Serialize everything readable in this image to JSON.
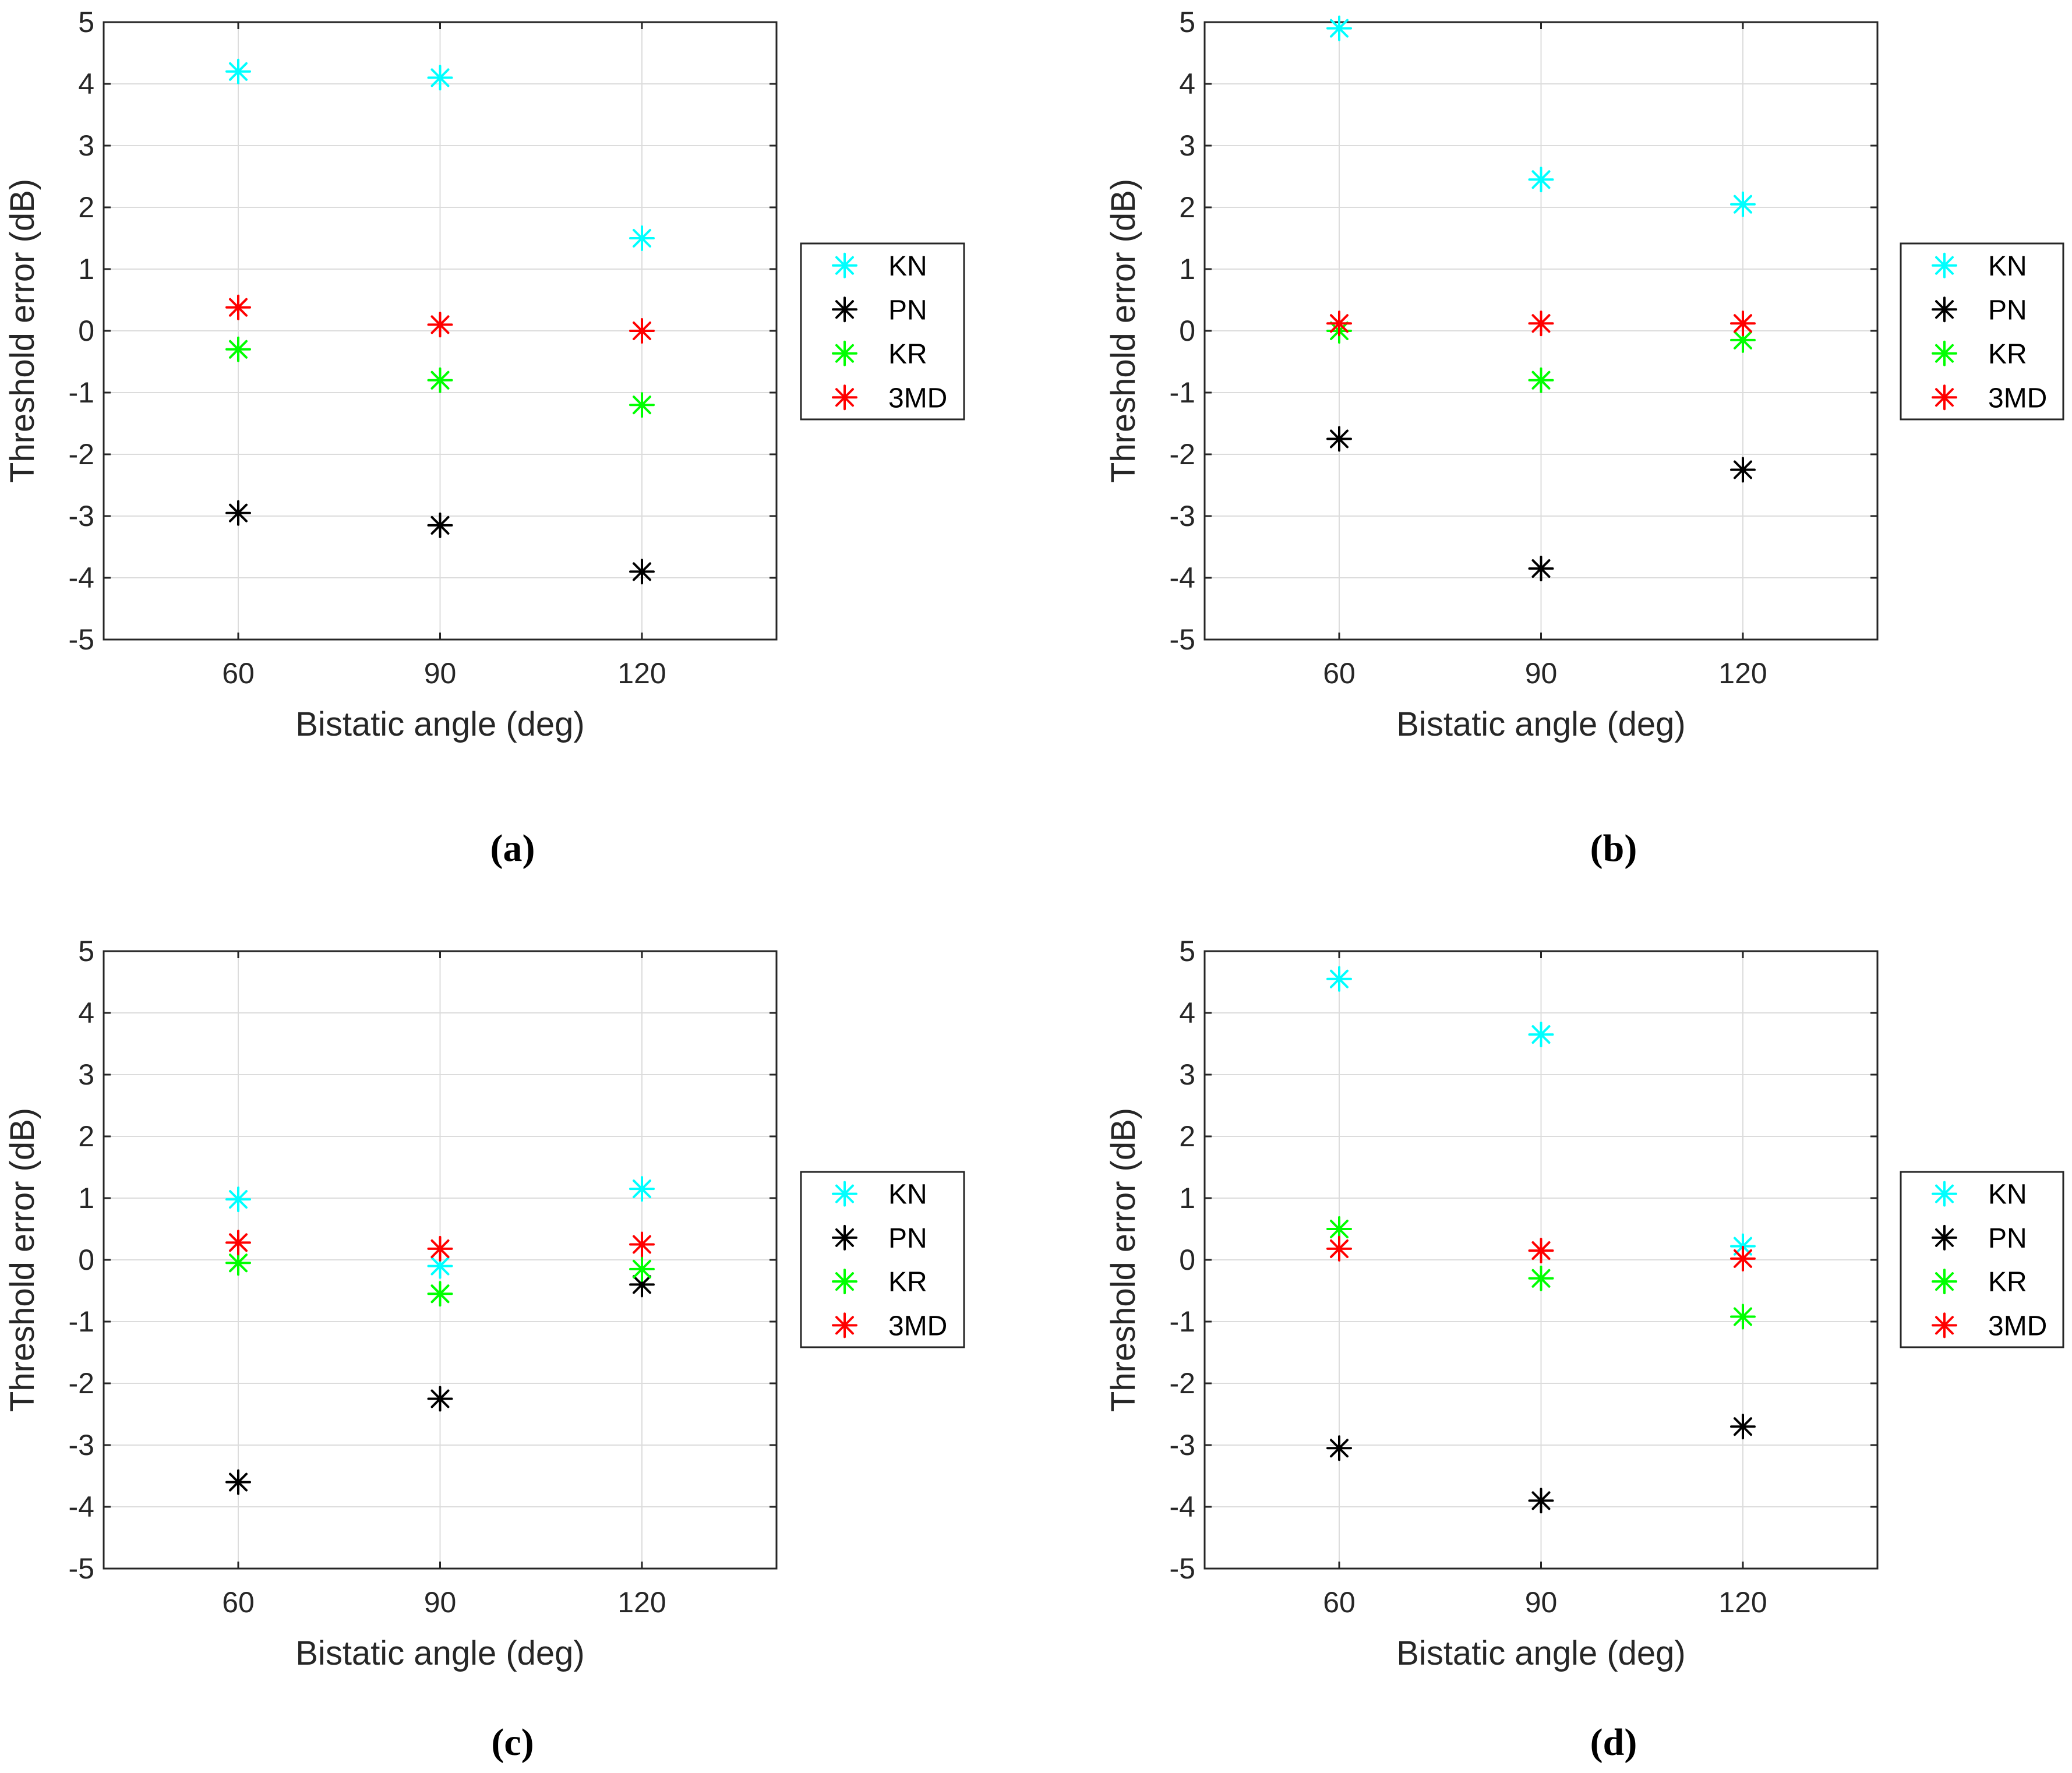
{
  "chart_data": [
    {
      "type": "scatter",
      "panel_label": "(a)",
      "xlabel": "Bistatic angle (deg)",
      "ylabel": "Threshold error (dB)",
      "x": [
        60,
        90,
        120
      ],
      "xlim": [
        40,
        140
      ],
      "ylim": [
        -5,
        5
      ],
      "xticks": [
        "60",
        "90",
        "120"
      ],
      "yticks": [
        "5",
        "4",
        "3",
        "2",
        "1",
        "0",
        "-1",
        "-2",
        "-3",
        "-4",
        "-5"
      ],
      "grid": true,
      "legend": "outside-right",
      "marker": "asterisk",
      "series": [
        {
          "name": "KN",
          "color": "#00FFFF",
          "values": [
            4.2,
            4.1,
            1.5
          ]
        },
        {
          "name": "PN",
          "color": "#000000",
          "values": [
            -2.95,
            -3.15,
            -3.9
          ]
        },
        {
          "name": "KR",
          "color": "#00FF00",
          "values": [
            -0.3,
            -0.8,
            -1.2
          ]
        },
        {
          "name": "3MD",
          "color": "#FF0000",
          "values": [
            0.38,
            0.1,
            0.0
          ]
        }
      ]
    },
    {
      "type": "scatter",
      "panel_label": "(b)",
      "xlabel": "Bistatic angle (deg)",
      "ylabel": "Threshold error (dB)",
      "x": [
        60,
        90,
        120
      ],
      "xlim": [
        40,
        140
      ],
      "ylim": [
        -5,
        5
      ],
      "xticks": [
        "60",
        "90",
        "120"
      ],
      "yticks": [
        "5",
        "4",
        "3",
        "2",
        "1",
        "0",
        "-1",
        "-2",
        "-3",
        "-4",
        "-5"
      ],
      "grid": true,
      "legend": "outside-right",
      "marker": "asterisk",
      "series": [
        {
          "name": "KN",
          "color": "#00FFFF",
          "values": [
            4.9,
            2.45,
            2.05
          ]
        },
        {
          "name": "PN",
          "color": "#000000",
          "values": [
            -1.75,
            -3.85,
            -2.25
          ]
        },
        {
          "name": "KR",
          "color": "#00FF00",
          "values": [
            0.0,
            -0.8,
            -0.15
          ]
        },
        {
          "name": "3MD",
          "color": "#FF0000",
          "values": [
            0.12,
            0.12,
            0.12
          ]
        }
      ]
    },
    {
      "type": "scatter",
      "panel_label": "(c)",
      "xlabel": "Bistatic angle (deg)",
      "ylabel": "Threshold error (dB)",
      "x": [
        60,
        90,
        120
      ],
      "xlim": [
        40,
        140
      ],
      "ylim": [
        -5,
        5
      ],
      "xticks": [
        "60",
        "90",
        "120"
      ],
      "yticks": [
        "5",
        "4",
        "3",
        "2",
        "1",
        "0",
        "-1",
        "-2",
        "-3",
        "-4",
        "-5"
      ],
      "grid": true,
      "legend": "outside-right",
      "marker": "asterisk",
      "series": [
        {
          "name": "KN",
          "color": "#00FFFF",
          "values": [
            0.98,
            -0.1,
            1.15
          ]
        },
        {
          "name": "PN",
          "color": "#000000",
          "values": [
            -3.6,
            -2.25,
            -0.4
          ]
        },
        {
          "name": "KR",
          "color": "#00FF00",
          "values": [
            -0.05,
            -0.55,
            -0.15
          ]
        },
        {
          "name": "3MD",
          "color": "#FF0000",
          "values": [
            0.28,
            0.18,
            0.25
          ]
        }
      ]
    },
    {
      "type": "scatter",
      "panel_label": "(d)",
      "xlabel": "Bistatic angle (deg)",
      "ylabel": "Threshold error (dB)",
      "x": [
        60,
        90,
        120
      ],
      "xlim": [
        40,
        140
      ],
      "ylim": [
        -5,
        5
      ],
      "xticks": [
        "60",
        "90",
        "120"
      ],
      "yticks": [
        "5",
        "4",
        "3",
        "2",
        "1",
        "0",
        "-1",
        "-2",
        "-3",
        "-4",
        "-5"
      ],
      "grid": true,
      "legend": "outside-right",
      "marker": "asterisk",
      "series": [
        {
          "name": "KN",
          "color": "#00FFFF",
          "values": [
            4.55,
            3.65,
            0.22
          ]
        },
        {
          "name": "PN",
          "color": "#000000",
          "values": [
            -3.05,
            -3.9,
            -2.7
          ]
        },
        {
          "name": "KR",
          "color": "#00FF00",
          "values": [
            0.5,
            -0.3,
            -0.92
          ]
        },
        {
          "name": "3MD",
          "color": "#FF0000",
          "values": [
            0.18,
            0.15,
            0.02
          ]
        }
      ]
    }
  ]
}
